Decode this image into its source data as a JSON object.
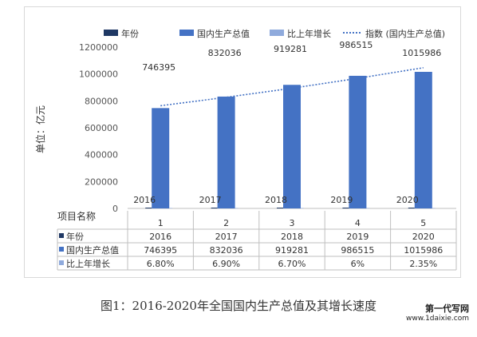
{
  "chart_data": {
    "type": "bar",
    "categories": [
      "2016",
      "2017",
      "2018",
      "2019",
      "2020"
    ],
    "series": [
      {
        "name": "年份",
        "values": [
          2016,
          2017,
          2018,
          2019,
          2020
        ],
        "color": "#1f3864"
      },
      {
        "name": "国内生产总值",
        "values": [
          746395,
          832036,
          919281,
          986515,
          1015986
        ],
        "color": "#4472c4"
      },
      {
        "name": "比上年增长",
        "values": [
          6.8,
          6.9,
          6.7,
          6,
          2.35
        ],
        "color": "#8faadc"
      }
    ],
    "trendline": {
      "name": "指数 (国内生产总值)",
      "color": "#4472c4"
    },
    "ylabel": "单位：亿元",
    "ylim": [
      0,
      1200000
    ],
    "yticks": [
      "0",
      "200000",
      "400000",
      "600000",
      "800000",
      "1000000",
      "1200000"
    ],
    "data_labels": [
      "746395",
      "832036",
      "919281",
      "986515",
      "1015986"
    ],
    "table": {
      "header_label": "项目名称",
      "columns": [
        "1",
        "2",
        "3",
        "4",
        "5"
      ],
      "rows": [
        {
          "label": "年份",
          "color": "#1f3864",
          "cells": [
            "2016",
            "2017",
            "2018",
            "2019",
            "2020"
          ]
        },
        {
          "label": "国内生产总值",
          "color": "#4472c4",
          "cells": [
            "746395",
            "832036",
            "919281",
            "986515",
            "1015986"
          ]
        },
        {
          "label": "比上年增长",
          "color": "#8faadc",
          "cells": [
            "6.80%",
            "6.90%",
            "6.70%",
            "6%",
            "2.35%"
          ]
        }
      ]
    }
  },
  "caption": "图1：2016-2020年全国国内生产总值及其增长速度",
  "watermark": {
    "line1": "第一代写网",
    "line2": "www.1daixie.com"
  }
}
